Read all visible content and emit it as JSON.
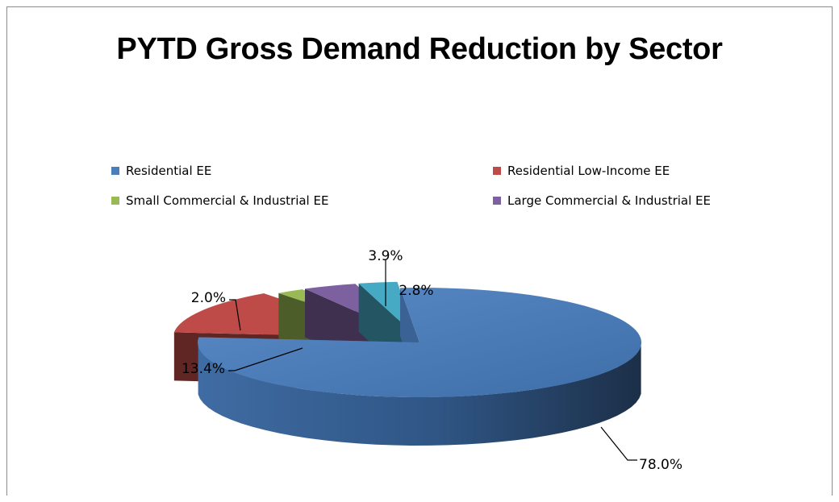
{
  "chart_data": {
    "type": "pie",
    "title": "PYTD Gross Demand Reduction by Sector",
    "legend_position": "top",
    "slices": [
      {
        "name": "Residential EE",
        "value": 78.0,
        "label": "78.0%",
        "color": "#4a7ebb"
      },
      {
        "name": "Residential Low-Income EE",
        "value": 13.4,
        "label": "13.4%",
        "color": "#be4b48"
      },
      {
        "name": "Small Commercial & Industrial EE",
        "value": 2.0,
        "label": "2.0%",
        "color": "#98b954"
      },
      {
        "name": "Large Commercial & Industrial EE",
        "value": 3.9,
        "label": "3.9%",
        "color": "#7d60a0"
      },
      {
        "name": "",
        "value": 2.8,
        "label": "2.8%",
        "color": "#46aac5"
      }
    ]
  }
}
